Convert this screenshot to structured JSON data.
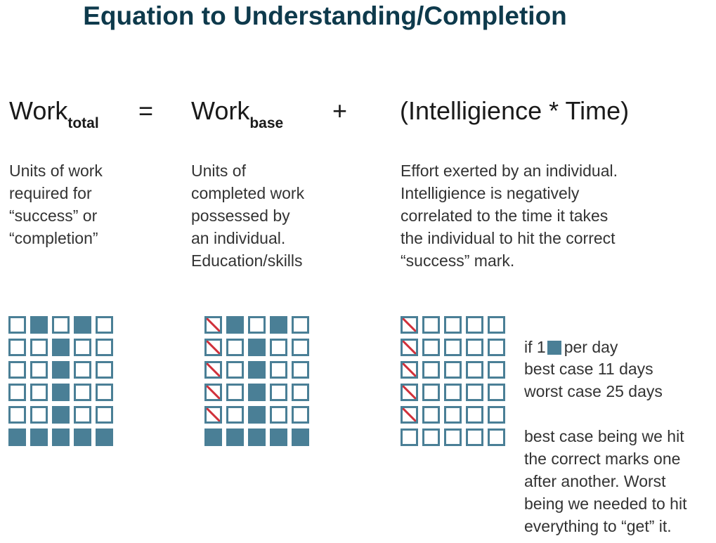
{
  "title": "Equation to Understanding/Completion",
  "equation": {
    "term1": {
      "base": "Work",
      "sub": "total"
    },
    "op1": "=",
    "term2": {
      "base": "Work",
      "sub": "base"
    },
    "op2": "+",
    "term3": "(Intelligience * Time)"
  },
  "descriptions": {
    "total": "Units of work\nrequired for\n“success” or\n“completion”",
    "base": "Units of\ncompleted work\npossessed by\nan individual.\nEducation/skills",
    "effort": "Effort exerted by an individual.\nIntelligience is negatively\ncorrelated to the time it takes\nthe individual to hit the correct\n“success” mark."
  },
  "colors": {
    "fill": "#4a7f96",
    "slash": "#d0303a",
    "title": "#0e3a4c"
  },
  "grids": {
    "total": [
      [
        "empty",
        "filled",
        "empty",
        "filled",
        "empty"
      ],
      [
        "empty",
        "empty",
        "filled",
        "empty",
        "empty"
      ],
      [
        "empty",
        "empty",
        "filled",
        "empty",
        "empty"
      ],
      [
        "empty",
        "empty",
        "filled",
        "empty",
        "empty"
      ],
      [
        "empty",
        "empty",
        "filled",
        "empty",
        "empty"
      ],
      [
        "filled",
        "filled",
        "filled",
        "filled",
        "filled"
      ]
    ],
    "base": [
      [
        "slashed",
        "filled",
        "empty",
        "filled",
        "empty"
      ],
      [
        "slashed",
        "empty",
        "filled",
        "empty",
        "empty"
      ],
      [
        "slashed",
        "empty",
        "filled",
        "empty",
        "empty"
      ],
      [
        "slashed",
        "empty",
        "filled",
        "empty",
        "empty"
      ],
      [
        "slashed",
        "empty",
        "filled",
        "empty",
        "empty"
      ],
      [
        "filled",
        "filled",
        "filled",
        "filled",
        "filled"
      ]
    ],
    "effort": [
      [
        "slashed",
        "empty",
        "empty",
        "empty",
        "empty"
      ],
      [
        "slashed",
        "empty",
        "empty",
        "empty",
        "empty"
      ],
      [
        "slashed",
        "empty",
        "empty",
        "empty",
        "empty"
      ],
      [
        "slashed",
        "empty",
        "empty",
        "empty",
        "empty"
      ],
      [
        "slashed",
        "empty",
        "empty",
        "empty",
        "empty"
      ],
      [
        "empty",
        "empty",
        "empty",
        "empty",
        "empty"
      ]
    ]
  },
  "notes": {
    "rate_prefix": "if 1",
    "rate_suffix": "per day",
    "best_case": "best case 11 days",
    "worst_case": "worst case 25 days",
    "explanation": "best case being we hit\nthe correct marks one\nafter another. Worst\nbeing we needed to hit\neverything to “get” it."
  }
}
